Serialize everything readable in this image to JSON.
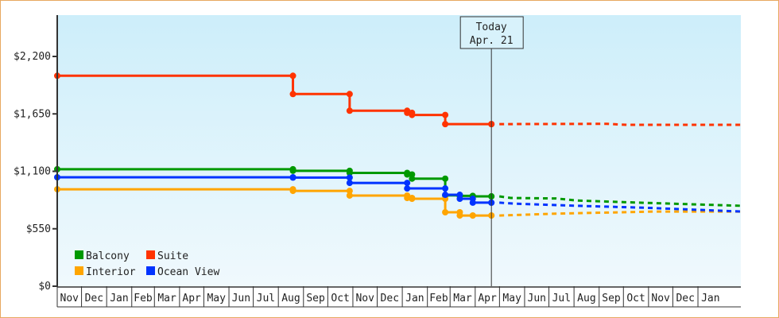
{
  "chart_data": {
    "type": "line",
    "step": true,
    "x_start": "Nov 1",
    "x_end": "Feb 23",
    "ylim": [
      0,
      2500
    ],
    "y_ticks": [
      0,
      550,
      1100,
      1650,
      2200
    ],
    "y_tick_labels": [
      "$0",
      "$550",
      "$1,100",
      "$1,650",
      "$2,200"
    ],
    "month_labels": [
      "Nov",
      "Dec",
      "Jan",
      "Feb",
      "Mar",
      "Apr",
      "May",
      "Jun",
      "Jul",
      "Aug",
      "Sep",
      "Oct",
      "Nov",
      "Dec",
      "Jan",
      "Feb",
      "Mar",
      "Apr",
      "May",
      "Jun",
      "Jul",
      "Aug",
      "Sep",
      "Oct",
      "Nov",
      "Dec",
      "Jan"
    ],
    "today": {
      "title": "Today",
      "label": "Apr. 21",
      "date": "Apr 21"
    },
    "legend_placement": "bottom-left",
    "series": [
      {
        "name": "Balcony",
        "color": "#009900",
        "history": [
          [
            "Nov 1",
            1120
          ],
          [
            "Aug 19",
            1105
          ],
          [
            "Oct 28",
            1085
          ],
          [
            "Jan 7",
            1070
          ],
          [
            "Jan 13",
            1030
          ],
          [
            "Feb 23",
            870
          ],
          [
            "Mar 13",
            865
          ],
          [
            "Mar 29",
            860
          ],
          [
            "Apr 21",
            860
          ]
        ],
        "forecast": [
          [
            "Apr 21",
            860
          ],
          [
            "May 15",
            845
          ],
          [
            "Jul 10",
            840
          ],
          [
            "Aug 5",
            820
          ],
          [
            "Oct 1",
            805
          ],
          [
            "Dec 1",
            790
          ],
          [
            "Feb 23",
            770
          ]
        ]
      },
      {
        "name": "Suite",
        "color": "#ff3300",
        "history": [
          [
            "Nov 1",
            2015
          ],
          [
            "Aug 19",
            1840
          ],
          [
            "Oct 28",
            1680
          ],
          [
            "Jan 7",
            1660
          ],
          [
            "Jan 13",
            1640
          ],
          [
            "Feb 23",
            1552
          ],
          [
            "Apr 21",
            1552
          ]
        ],
        "forecast": [
          [
            "Apr 21",
            1552
          ],
          [
            "Sep 10",
            1555
          ],
          [
            "Oct 5",
            1545
          ],
          [
            "Feb 23",
            1545
          ]
        ]
      },
      {
        "name": "Interior",
        "color": "#ffa500",
        "history": [
          [
            "Nov 1",
            928
          ],
          [
            "Aug 19",
            913
          ],
          [
            "Oct 28",
            868
          ],
          [
            "Jan 7",
            845
          ],
          [
            "Jan 13",
            837
          ],
          [
            "Feb 23",
            708
          ],
          [
            "Mar 13",
            677
          ],
          [
            "Mar 29",
            677
          ],
          [
            "Apr 21",
            677
          ]
        ],
        "forecast": [
          [
            "Apr 21",
            677
          ],
          [
            "May 15",
            680
          ],
          [
            "Jul 10",
            695
          ],
          [
            "Sep 10",
            705
          ],
          [
            "Nov 10",
            715
          ],
          [
            "Feb 23",
            715
          ]
        ]
      },
      {
        "name": "Ocean View",
        "color": "#0033ff",
        "history": [
          [
            "Nov 1",
            1043
          ],
          [
            "Aug 19",
            1040
          ],
          [
            "Oct 28",
            989
          ],
          [
            "Jan 7",
            936
          ],
          [
            "Feb 23",
            875
          ],
          [
            "Mar 13",
            837
          ],
          [
            "Mar 29",
            800
          ],
          [
            "Apr 21",
            800
          ]
        ],
        "forecast": [
          [
            "Apr 21",
            800
          ],
          [
            "May 20",
            790
          ],
          [
            "Aug 5",
            770
          ],
          [
            "Nov 1",
            750
          ],
          [
            "Feb 23",
            715
          ]
        ]
      }
    ]
  }
}
